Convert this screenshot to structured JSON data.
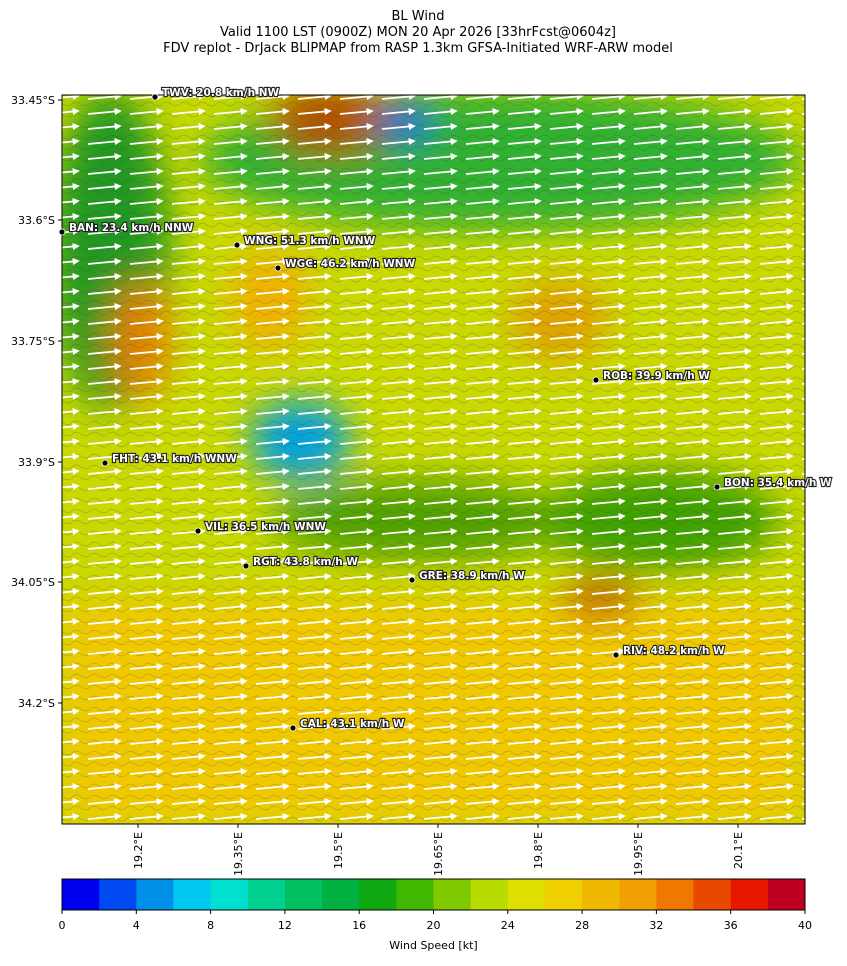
{
  "title": [
    "BL Wind",
    "Valid 1100 LST (0900Z) MON 20 Apr 2026 [33hrFcst@0604z]",
    "FDV replot - DrJack BLIPMAP from RASP 1.3km GFSA-Initiated WRF-ARW model"
  ],
  "lat_ticks": [
    "33.45°S",
    "33.6°S",
    "33.75°S",
    "33.9°S",
    "34.05°S",
    "34.2°S"
  ],
  "lon_ticks": [
    "19.2°E",
    "19.35°E",
    "19.5°E",
    "19.65°E",
    "19.8°E",
    "19.95°E",
    "20.1°E"
  ],
  "stations": [
    "TWV: 20.8 km/h NW",
    "BAN: 23.4 km/h NNW",
    "WNG: 51.3 km/h WNW",
    "WGC: 46.2 km/h WNW",
    "ROB: 39.9 km/h W",
    "FHT: 43.1 km/h WNW",
    "BON: 35.4 km/h W",
    "VIL: 36.5 km/h WNW",
    "RGT: 43.8 km/h W",
    "GRE: 38.9 km/h W",
    "RIV: 48.2 km/h W",
    "CAL: 43.1 km/h W"
  ],
  "colorbar": {
    "ticks": [
      0,
      4,
      8,
      12,
      16,
      20,
      24,
      28,
      32,
      36,
      40
    ],
    "label": "Wind Speed [kt]",
    "colors": [
      "#0000f0",
      "#0048f0",
      "#0090e8",
      "#00c8f0",
      "#00e0d0",
      "#00d090",
      "#00c060",
      "#00b040",
      "#10a810",
      "#40b800",
      "#80c800",
      "#b8dc00",
      "#e0e000",
      "#f0d000",
      "#f0b800",
      "#f0a000",
      "#f07800",
      "#e84800",
      "#e81800",
      "#c00020"
    ]
  }
}
